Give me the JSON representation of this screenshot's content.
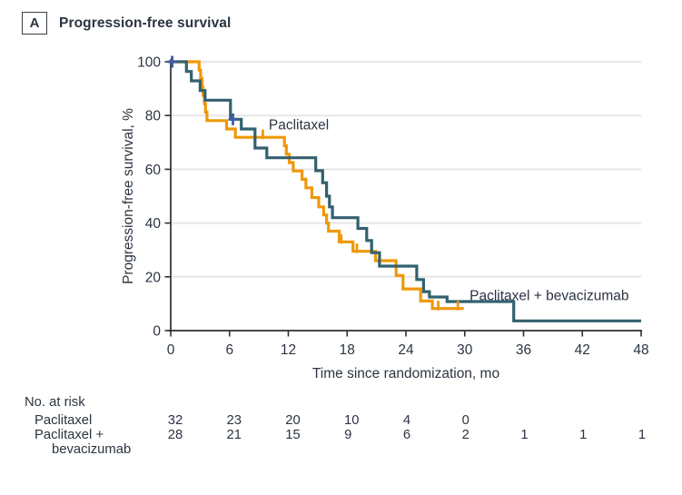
{
  "panel": {
    "letter": "A",
    "title": "Progression-free survival"
  },
  "colors": {
    "paclitaxel": "#F0980A",
    "bevacizumab": "#33616F",
    "censor_plus": "#3F5BA9",
    "text": "#2B3440",
    "axis": "#2E2E2E",
    "grid": "#E7E7E7",
    "background": "#FFFFFF"
  },
  "chart_data": {
    "type": "line",
    "subtype": "kaplan-meier-step",
    "title": "Progression-free survival",
    "xlabel": "Time since randomization, mo",
    "ylabel": "Progression-free survival, %",
    "xlim": [
      0,
      48
    ],
    "ylim": [
      0,
      100
    ],
    "xticks": [
      0,
      6,
      12,
      18,
      24,
      30,
      36,
      42,
      48
    ],
    "yticks": [
      0,
      20,
      40,
      60,
      80,
      100
    ],
    "grid": "horizontal",
    "legend_position": "inline-labels",
    "series": [
      {
        "name": "Paclitaxel",
        "color_key": "paclitaxel",
        "label": "Paclitaxel",
        "label_at": {
          "t": 10.0,
          "pct": 76.5
        },
        "censor_style": "tick",
        "censor_color_key": "paclitaxel",
        "end_t": 29.9,
        "steps": [
          [
            0,
            100
          ],
          [
            2.9,
            96.9
          ],
          [
            3.05,
            93.8
          ],
          [
            3.2,
            90.6
          ],
          [
            3.3,
            87.5
          ],
          [
            3.45,
            84.4
          ],
          [
            3.55,
            81.3
          ],
          [
            3.7,
            78.1
          ],
          [
            5.7,
            75.0
          ],
          [
            6.6,
            71.9
          ],
          [
            11.6,
            68.8
          ],
          [
            11.8,
            65.6
          ],
          [
            12.1,
            62.5
          ],
          [
            12.5,
            59.4
          ],
          [
            13.4,
            56.3
          ],
          [
            13.8,
            53.1
          ],
          [
            14.4,
            49.5
          ],
          [
            15.1,
            46.0
          ],
          [
            15.6,
            43.0
          ],
          [
            15.9,
            40.0
          ],
          [
            16.1,
            37.0
          ],
          [
            17.2,
            33.0
          ],
          [
            18.6,
            29.5
          ],
          [
            20.9,
            26.0
          ],
          [
            23.0,
            20.5
          ],
          [
            23.7,
            15.5
          ],
          [
            25.5,
            11.0
          ],
          [
            26.7,
            8.2
          ]
        ],
        "censors": [
          [
            9.4,
            71.9
          ],
          [
            17.4,
            33.0
          ],
          [
            19.0,
            29.5
          ],
          [
            27.3,
            8.2
          ],
          [
            29.3,
            8.2
          ]
        ]
      },
      {
        "name": "Paclitaxel + bevacizumab",
        "color_key": "bevacizumab",
        "label": "Paclitaxel + bevacizumab",
        "label_at": {
          "t": 30.5,
          "pct": 13.0
        },
        "censor_style": "plus",
        "censor_color_key": "censor_plus",
        "end_t": 48,
        "steps": [
          [
            0,
            100
          ],
          [
            1.6,
            96.4
          ],
          [
            2.1,
            92.9
          ],
          [
            3.0,
            89.3
          ],
          [
            3.5,
            85.7
          ],
          [
            6.1,
            78.6
          ],
          [
            7.2,
            75.0
          ],
          [
            8.6,
            67.9
          ],
          [
            9.8,
            64.3
          ],
          [
            14.8,
            59.5
          ],
          [
            15.5,
            55.0
          ],
          [
            15.9,
            50.0
          ],
          [
            16.2,
            46.0
          ],
          [
            16.5,
            42.0
          ],
          [
            19.1,
            38.0
          ],
          [
            20.0,
            33.5
          ],
          [
            20.5,
            29.0
          ],
          [
            21.3,
            24.0
          ],
          [
            25.1,
            19.0
          ],
          [
            25.8,
            14.5
          ],
          [
            26.4,
            12.5
          ],
          [
            28.2,
            10.8
          ],
          [
            35.0,
            3.6
          ]
        ],
        "censors": [
          [
            0.15,
            100
          ],
          [
            6.35,
            78.6
          ]
        ]
      }
    ],
    "risk_table": {
      "title": "No. at risk",
      "times": [
        0,
        6,
        12,
        18,
        24,
        30,
        36,
        42,
        48
      ],
      "rows": [
        {
          "label_lines": [
            "Paclitaxel"
          ],
          "values": [
            "32",
            "23",
            "20",
            "10",
            "4",
            "0",
            "",
            "",
            ""
          ]
        },
        {
          "label_lines": [
            "Paclitaxel +",
            "bevacizumab"
          ],
          "values": [
            "28",
            "21",
            "15",
            "9",
            "6",
            "2",
            "1",
            "1",
            "1"
          ]
        }
      ]
    }
  }
}
